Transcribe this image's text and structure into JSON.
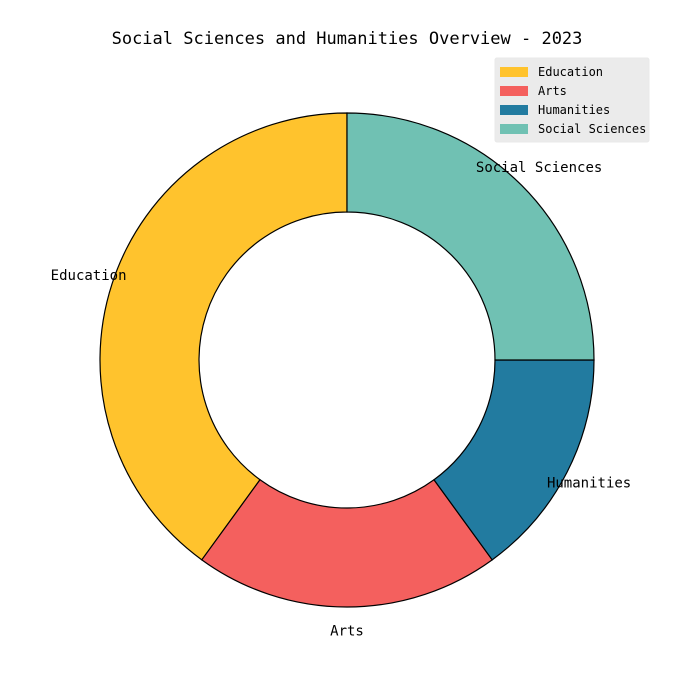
{
  "chart_data": {
    "type": "pie",
    "variant": "donut",
    "title": "Social Sciences and Humanities Overview - 2023",
    "categories": [
      "Education",
      "Arts",
      "Humanities",
      "Social Sciences"
    ],
    "values": [
      40,
      20,
      15,
      25
    ],
    "colors": [
      "#FFC32D",
      "#F4605E",
      "#227BA0",
      "#70C1B3"
    ],
    "legend": {
      "position": "top-right",
      "entries": [
        "Education",
        "Arts",
        "Humanities",
        "Social Sciences"
      ]
    },
    "start_angle_degrees": 90,
    "direction": "counterclockwise",
    "edge_color": "#000000",
    "legend_frame_color": "#e8e8e8"
  }
}
